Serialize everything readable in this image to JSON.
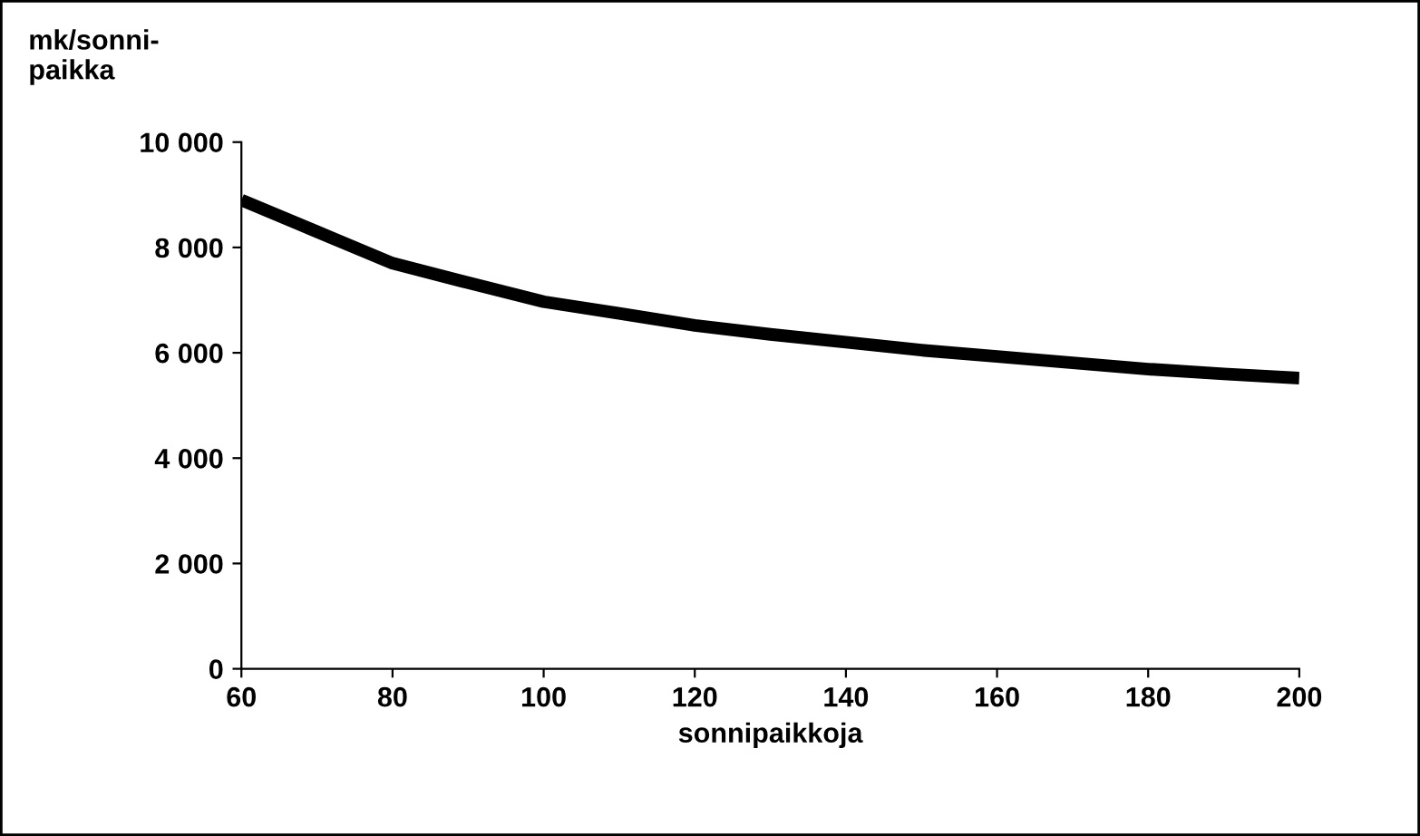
{
  "chart_data": {
    "type": "line",
    "xlabel": "sonnipaikkoja",
    "ylabel": "mk/sonni-\npaikka",
    "x": [
      60,
      70,
      80,
      90,
      100,
      110,
      120,
      130,
      140,
      150,
      160,
      170,
      180,
      190,
      200
    ],
    "series": [
      {
        "color": "#000000",
        "values": [
          8900,
          8300,
          7700,
          7330,
          6970,
          6750,
          6520,
          6350,
          6200,
          6050,
          5930,
          5810,
          5690,
          5600,
          5520
        ]
      }
    ],
    "xlim": [
      60,
      200
    ],
    "xticks": [
      60,
      80,
      100,
      120,
      140,
      160,
      180,
      200
    ],
    "ylim": [
      0,
      10000
    ],
    "yticks": [
      {
        "value": 0,
        "label": "0"
      },
      {
        "value": 2000,
        "label": "2 000"
      },
      {
        "value": 4000,
        "label": "4 000"
      },
      {
        "value": 6000,
        "label": "6 000"
      },
      {
        "value": 8000,
        "label": "8 000"
      },
      {
        "value": 10000,
        "label": "10 000"
      }
    ],
    "grid": false,
    "legend": false,
    "marker": "none",
    "line_style": "solid"
  }
}
